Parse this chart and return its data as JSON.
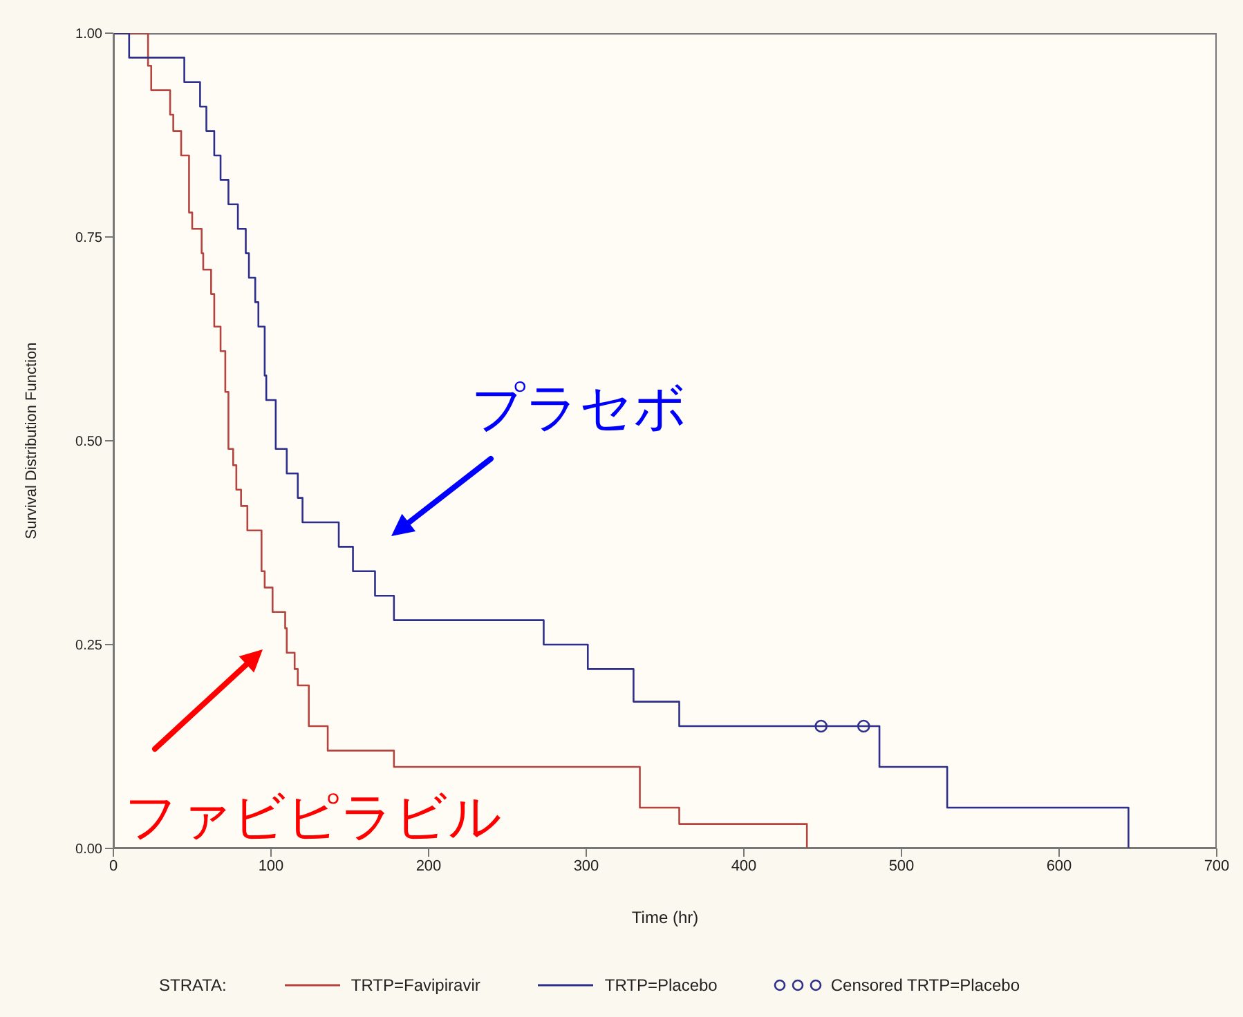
{
  "chart_data": {
    "type": "step",
    "xlabel": "Time (hr)",
    "ylabel": "Survival Distribution Function",
    "legend_title": "STRATA:",
    "xlim": [
      0,
      700
    ],
    "xticks": [
      0,
      100,
      200,
      300,
      400,
      500,
      600,
      700
    ],
    "ylim": [
      0,
      1
    ],
    "yticks": [
      {
        "value": 0,
        "label": "0.00"
      },
      {
        "value": 0.25,
        "label": "0.25"
      },
      {
        "value": 0.5,
        "label": "0.50"
      },
      {
        "value": 0.75,
        "label": "0.75"
      },
      {
        "value": 1,
        "label": "1.00"
      }
    ],
    "series": [
      {
        "name": "TRTP=Favipiravir",
        "color": "#b5443f",
        "x": [
          0,
          22,
          24,
          36,
          38,
          43,
          48,
          50,
          56,
          57,
          62,
          64,
          68,
          71,
          73,
          76,
          78,
          81,
          85,
          94,
          96,
          101,
          109,
          110,
          115,
          117,
          124,
          136,
          178,
          334,
          359,
          440
        ],
        "values": [
          1,
          0.96,
          0.93,
          0.9,
          0.88,
          0.85,
          0.78,
          0.76,
          0.73,
          0.71,
          0.68,
          0.64,
          0.61,
          0.56,
          0.49,
          0.47,
          0.44,
          0.42,
          0.39,
          0.34,
          0.32,
          0.29,
          0.27,
          0.24,
          0.22,
          0.2,
          0.15,
          0.12,
          0.1,
          0.05,
          0.03,
          0
        ]
      },
      {
        "name": "TRTP=Placebo",
        "color": "#2e2e8c",
        "x": [
          0,
          10,
          45,
          55,
          59,
          64,
          68,
          73,
          79,
          84,
          86,
          90,
          92,
          96,
          97,
          103,
          110,
          117,
          120,
          143,
          152,
          166,
          178,
          273,
          301,
          330,
          359,
          486,
          529,
          644
        ],
        "values": [
          1,
          0.97,
          0.94,
          0.91,
          0.88,
          0.85,
          0.82,
          0.79,
          0.76,
          0.73,
          0.7,
          0.67,
          0.64,
          0.58,
          0.55,
          0.49,
          0.46,
          0.43,
          0.4,
          0.37,
          0.34,
          0.31,
          0.28,
          0.25,
          0.22,
          0.18,
          0.15,
          0.1,
          0.05,
          0
        ]
      },
      {
        "name": "Censored TRTP=Placebo",
        "type": "scatter",
        "marker": "circle",
        "color": "#2e2e8c",
        "x": [
          449,
          476
        ],
        "values": [
          0.15,
          0.15
        ]
      }
    ],
    "annotations": [
      "ファビピラビル",
      "プラセボ"
    ],
    "marker": "none",
    "line_style": "solid",
    "grid": false,
    "legend": "bottom"
  }
}
